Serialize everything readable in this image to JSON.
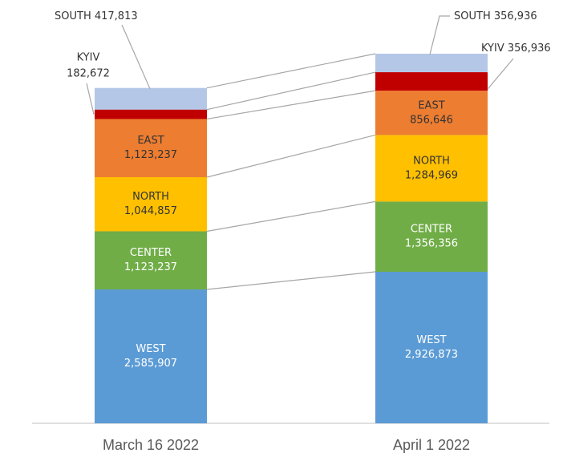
{
  "chart_data": {
    "type": "stacked_bar",
    "categories": [
      "March 16 2022",
      "April 1 2022"
    ],
    "series": [
      {
        "name": "WEST",
        "color": "#5b9bd5",
        "values": [
          2585907,
          2926873
        ],
        "value_labels": [
          "2,585,907",
          "2,926,873"
        ]
      },
      {
        "name": "CENTER",
        "color": "#70ad47",
        "values": [
          1123237,
          1356356
        ],
        "value_labels": [
          "1,123,237",
          "1,356,356"
        ]
      },
      {
        "name": "NORTH",
        "color": "#ffc000",
        "values": [
          1044857,
          1284969
        ],
        "value_labels": [
          "1,044,857",
          "1,284,969"
        ]
      },
      {
        "name": "EAST",
        "color": "#ed7d31",
        "values": [
          1123237,
          856646
        ],
        "value_labels": [
          "1,123,237",
          "856,646"
        ]
      },
      {
        "name": "KYIV",
        "color": "#c00000",
        "values": [
          182672,
          356936
        ],
        "value_labels": [
          "182,672",
          "356,936"
        ]
      },
      {
        "name": "SOUTH",
        "color": "#b4c7e7",
        "values": [
          417813,
          356936
        ],
        "value_labels": [
          "417,813",
          "356,936"
        ]
      }
    ]
  }
}
